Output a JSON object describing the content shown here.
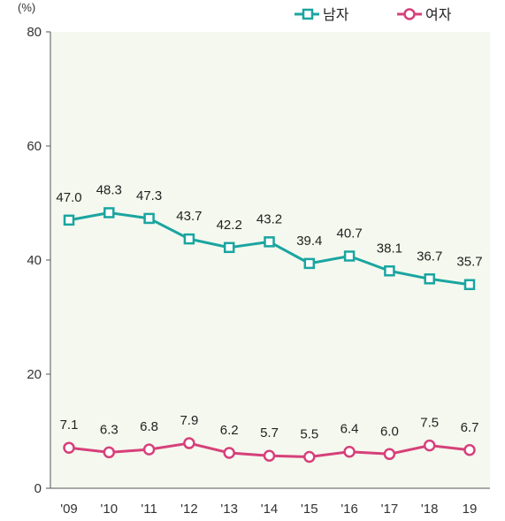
{
  "chart_data": {
    "type": "line",
    "unit_label": "(%)",
    "categories": [
      "'09",
      "'10",
      "'11",
      "'12",
      "'13",
      "'14",
      "'15",
      "'16",
      "'17",
      "'18",
      "19"
    ],
    "series": [
      {
        "name": "남자",
        "color": "#1aa5a0",
        "marker": "square",
        "values": [
          47.0,
          48.3,
          47.3,
          43.7,
          42.2,
          43.2,
          39.4,
          40.7,
          38.1,
          36.7,
          35.7
        ]
      },
      {
        "name": "여자",
        "color": "#d6407a",
        "marker": "circle",
        "values": [
          7.1,
          6.3,
          6.8,
          7.9,
          6.2,
          5.7,
          5.5,
          6.4,
          6.0,
          7.5,
          6.7
        ]
      }
    ],
    "ylim": [
      0,
      80
    ],
    "yticks": [
      0,
      20,
      40,
      60,
      80
    ],
    "grid": false,
    "legend_position": "top-right",
    "plot_background": "#f5f8ee"
  }
}
